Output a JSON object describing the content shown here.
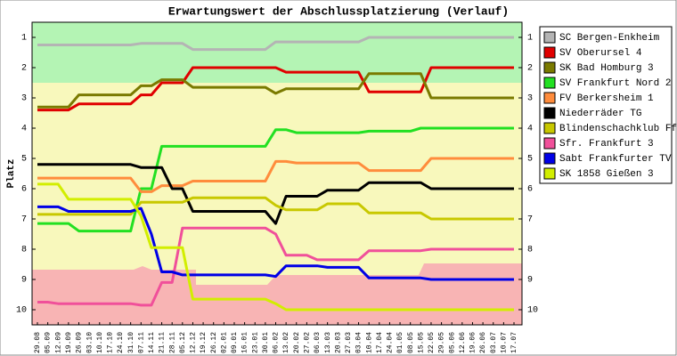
{
  "chart_data": {
    "type": "line",
    "title": "Erwartungswert der Abschlussplatzierung (Verlauf)",
    "y_label": "Platz",
    "y_inverted": true,
    "ylim": [
      0.5,
      10.5
    ],
    "yticks": [
      1,
      2,
      3,
      4,
      5,
      6,
      7,
      8,
      9,
      10
    ],
    "categories": [
      "29.08",
      "05.09",
      "12.09",
      "19.09",
      "26.09",
      "03.10",
      "10.10",
      "17.10",
      "24.10",
      "31.10",
      "07.11",
      "14.11",
      "21.11",
      "28.11",
      "05.12",
      "12.12",
      "19.12",
      "26.12",
      "02.01",
      "09.01",
      "16.01",
      "23.01",
      "30.01",
      "06.02",
      "13.02",
      "20.02",
      "27.02",
      "06.03",
      "13.03",
      "20.03",
      "27.03",
      "03.04",
      "10.04",
      "17.04",
      "24.04",
      "01.05",
      "08.05",
      "15.05",
      "22.05",
      "29.05",
      "05.06",
      "12.06",
      "19.06",
      "26.06",
      "03.07",
      "10.07",
      "17.07"
    ],
    "series": [
      {
        "name": "SC Bergen-Enkheim",
        "color": "#b4b4b4",
        "values": [
          1.25,
          1.25,
          1.25,
          1.25,
          1.25,
          1.25,
          1.25,
          1.25,
          1.25,
          1.25,
          1.2,
          1.2,
          1.2,
          1.2,
          1.2,
          1.4,
          1.4,
          1.4,
          1.4,
          1.4,
          1.4,
          1.4,
          1.4,
          1.15,
          1.15,
          1.15,
          1.15,
          1.15,
          1.15,
          1.15,
          1.15,
          1.15,
          1.0,
          1.0,
          1.0,
          1.0,
          1.0,
          1.0,
          1.0,
          1.0,
          1.0,
          1.0,
          1.0,
          1.0,
          1.0,
          1.0,
          1.0
        ]
      },
      {
        "name": "SV Oberursel 4",
        "color": "#e00000",
        "values": [
          3.4,
          3.4,
          3.4,
          3.4,
          3.2,
          3.2,
          3.2,
          3.2,
          3.2,
          3.2,
          2.9,
          2.9,
          2.5,
          2.5,
          2.5,
          2.0,
          2.0,
          2.0,
          2.0,
          2.0,
          2.0,
          2.0,
          2.0,
          2.0,
          2.15,
          2.15,
          2.15,
          2.15,
          2.15,
          2.15,
          2.15,
          2.15,
          2.8,
          2.8,
          2.8,
          2.8,
          2.8,
          2.8,
          2.0,
          2.0,
          2.0,
          2.0,
          2.0,
          2.0,
          2.0,
          2.0,
          2.0
        ]
      },
      {
        "name": "SK Bad Homburg 3",
        "color": "#7a7a00",
        "values": [
          3.3,
          3.3,
          3.3,
          3.3,
          2.9,
          2.9,
          2.9,
          2.9,
          2.9,
          2.9,
          2.6,
          2.6,
          2.4,
          2.4,
          2.4,
          2.65,
          2.65,
          2.65,
          2.65,
          2.65,
          2.65,
          2.65,
          2.65,
          2.85,
          2.7,
          2.7,
          2.7,
          2.7,
          2.7,
          2.7,
          2.7,
          2.7,
          2.2,
          2.2,
          2.2,
          2.2,
          2.2,
          2.2,
          3.0,
          3.0,
          3.0,
          3.0,
          3.0,
          3.0,
          3.0,
          3.0,
          3.0
        ]
      },
      {
        "name": "SV Frankfurt Nord 2",
        "color": "#22e022",
        "values": [
          7.15,
          7.15,
          7.15,
          7.15,
          7.4,
          7.4,
          7.4,
          7.4,
          7.4,
          7.4,
          6.0,
          6.0,
          4.6,
          4.6,
          4.6,
          4.6,
          4.6,
          4.6,
          4.6,
          4.6,
          4.6,
          4.6,
          4.6,
          4.05,
          4.05,
          4.15,
          4.15,
          4.15,
          4.15,
          4.15,
          4.15,
          4.15,
          4.1,
          4.1,
          4.1,
          4.1,
          4.1,
          4.0,
          4.0,
          4.0,
          4.0,
          4.0,
          4.0,
          4.0,
          4.0,
          4.0,
          4.0
        ]
      },
      {
        "name": "FV Berkersheim 1",
        "color": "#ff8c3c",
        "values": [
          5.65,
          5.65,
          5.65,
          5.65,
          5.65,
          5.65,
          5.65,
          5.65,
          5.65,
          5.65,
          6.1,
          6.1,
          5.9,
          5.9,
          5.9,
          5.75,
          5.75,
          5.75,
          5.75,
          5.75,
          5.75,
          5.75,
          5.75,
          5.1,
          5.1,
          5.15,
          5.15,
          5.15,
          5.15,
          5.15,
          5.15,
          5.15,
          5.4,
          5.4,
          5.4,
          5.4,
          5.4,
          5.4,
          5.0,
          5.0,
          5.0,
          5.0,
          5.0,
          5.0,
          5.0,
          5.0,
          5.0
        ]
      },
      {
        "name": "Niederräder TG",
        "color": "#000000",
        "values": [
          5.2,
          5.2,
          5.2,
          5.2,
          5.2,
          5.2,
          5.2,
          5.2,
          5.2,
          5.2,
          5.3,
          5.3,
          5.3,
          6.0,
          6.0,
          6.75,
          6.75,
          6.75,
          6.75,
          6.75,
          6.75,
          6.75,
          6.75,
          7.15,
          6.25,
          6.25,
          6.25,
          6.25,
          6.05,
          6.05,
          6.05,
          6.05,
          5.8,
          5.8,
          5.8,
          5.8,
          5.8,
          5.8,
          6.0,
          6.0,
          6.0,
          6.0,
          6.0,
          6.0,
          6.0,
          6.0,
          6.0
        ]
      },
      {
        "name": "Blindenschachklub Ffm",
        "color": "#c8c800",
        "values": [
          6.85,
          6.85,
          6.85,
          6.85,
          6.85,
          6.85,
          6.85,
          6.85,
          6.85,
          6.85,
          6.45,
          6.45,
          6.45,
          6.45,
          6.45,
          6.3,
          6.3,
          6.3,
          6.3,
          6.3,
          6.3,
          6.3,
          6.3,
          6.55,
          6.7,
          6.7,
          6.7,
          6.7,
          6.5,
          6.5,
          6.5,
          6.5,
          6.8,
          6.8,
          6.8,
          6.8,
          6.8,
          6.8,
          7.0,
          7.0,
          7.0,
          7.0,
          7.0,
          7.0,
          7.0,
          7.0,
          7.0
        ]
      },
      {
        "name": "Sfr. Frankfurt 3",
        "color": "#f0509a",
        "values": [
          9.75,
          9.75,
          9.8,
          9.8,
          9.8,
          9.8,
          9.8,
          9.8,
          9.8,
          9.8,
          9.85,
          9.85,
          9.1,
          9.1,
          7.3,
          7.3,
          7.3,
          7.3,
          7.3,
          7.3,
          7.3,
          7.3,
          7.3,
          7.5,
          8.2,
          8.2,
          8.2,
          8.35,
          8.35,
          8.35,
          8.35,
          8.35,
          8.05,
          8.05,
          8.05,
          8.05,
          8.05,
          8.05,
          8.0,
          8.0,
          8.0,
          8.0,
          8.0,
          8.0,
          8.0,
          8.0,
          8.0
        ]
      },
      {
        "name": "Sabt Frankfurter TV 4",
        "color": "#0000e6",
        "values": [
          6.6,
          6.6,
          6.6,
          6.75,
          6.75,
          6.75,
          6.75,
          6.75,
          6.75,
          6.75,
          6.65,
          7.5,
          8.75,
          8.75,
          8.85,
          8.85,
          8.85,
          8.85,
          8.85,
          8.85,
          8.85,
          8.85,
          8.85,
          8.9,
          8.55,
          8.55,
          8.55,
          8.55,
          8.6,
          8.6,
          8.6,
          8.6,
          8.95,
          8.95,
          8.95,
          8.95,
          8.95,
          8.95,
          9.0,
          9.0,
          9.0,
          9.0,
          9.0,
          9.0,
          9.0,
          9.0,
          9.0
        ]
      },
      {
        "name": "SK 1858 Gießen 3",
        "color": "#d2ee00",
        "values": [
          5.85,
          5.85,
          5.85,
          6.35,
          6.35,
          6.35,
          6.35,
          6.35,
          6.35,
          6.35,
          6.9,
          7.95,
          7.95,
          7.95,
          7.95,
          9.65,
          9.65,
          9.65,
          9.65,
          9.65,
          9.65,
          9.65,
          9.65,
          9.8,
          10.0,
          10.0,
          10.0,
          10.0,
          10.0,
          10.0,
          10.0,
          10.0,
          10.0,
          10.0,
          10.0,
          10.0,
          10.0,
          10.0,
          10.0,
          10.0,
          10.0,
          10.0,
          10.0,
          10.0,
          10.0,
          10.0,
          10.0
        ]
      }
    ]
  }
}
